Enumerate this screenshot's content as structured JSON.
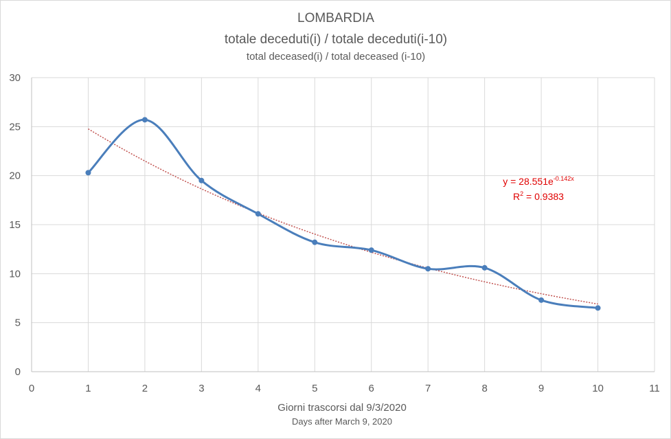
{
  "chart_data": {
    "type": "line",
    "title": "LOMBARDIA",
    "subtitle": "totale deceduti(i) / totale deceduti(i-10)",
    "subtitle2": "total deceased(i) / total deceased (i-10)",
    "xlabel": "Giorni trascorsi dal 9/3/2020",
    "xlabel2": "Days after March 9, 2020",
    "ylabel": "",
    "xlim": [
      0,
      11
    ],
    "ylim": [
      0,
      30
    ],
    "xticks": [
      0,
      1,
      2,
      3,
      4,
      5,
      6,
      7,
      8,
      9,
      10,
      11
    ],
    "yticks": [
      0,
      5,
      10,
      15,
      20,
      25,
      30
    ],
    "grid": true,
    "series": [
      {
        "color": "#4a7ebb",
        "smooth": true,
        "markers": true,
        "x": [
          1,
          2,
          3,
          4,
          5,
          6,
          7,
          8,
          9,
          10
        ],
        "y": [
          20.3,
          25.7,
          19.5,
          16.1,
          13.2,
          12.4,
          10.5,
          10.6,
          7.3,
          6.5
        ]
      }
    ],
    "trendline": {
      "type": "exponential",
      "color": "#c0504d",
      "a": 28.551,
      "b": -0.142,
      "x_range": [
        1,
        10
      ]
    },
    "annotation": {
      "equation_prefix": "y = 28.551e",
      "equation_exponent": "-0.142x",
      "r2_prefix": "R",
      "r2_exponent": "2",
      "r2_value": " = 0.9383",
      "color": "#e00000"
    }
  }
}
